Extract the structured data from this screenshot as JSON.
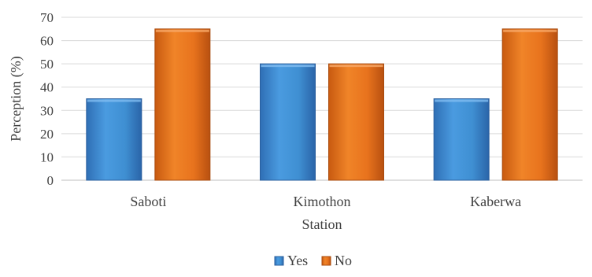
{
  "chart_data": {
    "type": "bar",
    "categories": [
      "Saboti",
      "Kimothon",
      "Kaberwa"
    ],
    "series": [
      {
        "name": "Yes",
        "values": [
          35,
          50,
          35
        ],
        "color": "#3f8fd2"
      },
      {
        "name": "No",
        "values": [
          65,
          50,
          65
        ],
        "color": "#e8731d"
      }
    ],
    "xlabel": "Station",
    "ylabel": "Perception (%)",
    "ylim": [
      0,
      70
    ],
    "yticks": [
      0,
      10,
      20,
      30,
      40,
      50,
      60,
      70
    ],
    "grid": true,
    "legend_position": "bottom"
  }
}
